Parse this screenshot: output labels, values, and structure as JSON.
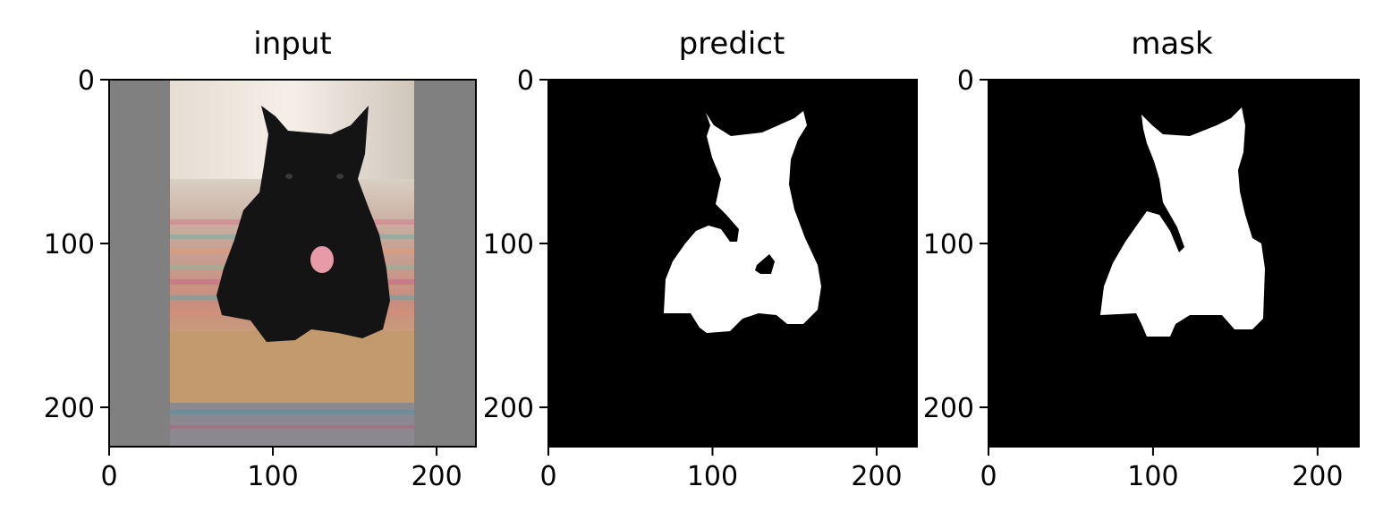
{
  "chart_data": [
    {
      "type": "image",
      "title": "input",
      "x_ticks": [
        0,
        100,
        200
      ],
      "y_ticks": [
        0,
        100,
        200
      ],
      "xlim": [
        0,
        224
      ],
      "ylim": [
        224,
        0
      ],
      "content": "photo-dog-on-rug-gray-padded",
      "colors": {
        "padding": "#808080",
        "dog": "#141414"
      }
    },
    {
      "type": "image",
      "title": "predict",
      "x_ticks": [
        0,
        100,
        200
      ],
      "y_ticks": [
        0,
        100,
        200
      ],
      "xlim": [
        0,
        224
      ],
      "ylim": [
        224,
        0
      ],
      "content": "binary-mask",
      "colors": {
        "background": "#000000",
        "foreground": "#ffffff"
      }
    },
    {
      "type": "image",
      "title": "mask",
      "x_ticks": [
        0,
        100,
        200
      ],
      "y_ticks": [
        0,
        100,
        200
      ],
      "xlim": [
        0,
        224
      ],
      "ylim": [
        224,
        0
      ],
      "content": "binary-mask",
      "colors": {
        "background": "#000000",
        "foreground": "#ffffff"
      }
    }
  ]
}
